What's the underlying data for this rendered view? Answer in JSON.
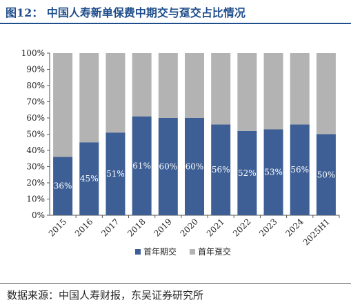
{
  "header": {
    "title": "图12：  中国人寿新单保费中期交与趸交占比情况"
  },
  "footer": {
    "source": "数据来源：中国人寿财报，东吴证券研究所"
  },
  "colors": {
    "series_periodic": "#3d5f95",
    "series_single": "#b3b3b3",
    "title": "#1f4e8c"
  },
  "chart_data": {
    "type": "bar",
    "stacked": true,
    "categories": [
      "2015",
      "2016",
      "2017",
      "2018",
      "2019",
      "2020",
      "2021",
      "2022",
      "2023",
      "2024",
      "2025H1"
    ],
    "series": [
      {
        "name": "首年期交",
        "values": [
          36,
          45,
          51,
          61,
          60,
          60,
          56,
          52,
          53,
          56,
          50
        ],
        "labels": [
          "36%",
          "45%",
          "51%",
          "61%",
          "60%",
          "60%",
          "56%",
          "52%",
          "53%",
          "56%",
          "50%"
        ]
      },
      {
        "name": "首年趸交",
        "values": [
          64,
          55,
          49,
          39,
          40,
          40,
          44,
          48,
          47,
          44,
          50
        ]
      }
    ],
    "ylim": [
      0,
      100
    ],
    "yticks": [
      "0%",
      "10%",
      "20%",
      "30%",
      "40%",
      "50%",
      "60%",
      "70%",
      "80%",
      "90%",
      "100%"
    ],
    "legend_position": "bottom",
    "grid": false
  }
}
